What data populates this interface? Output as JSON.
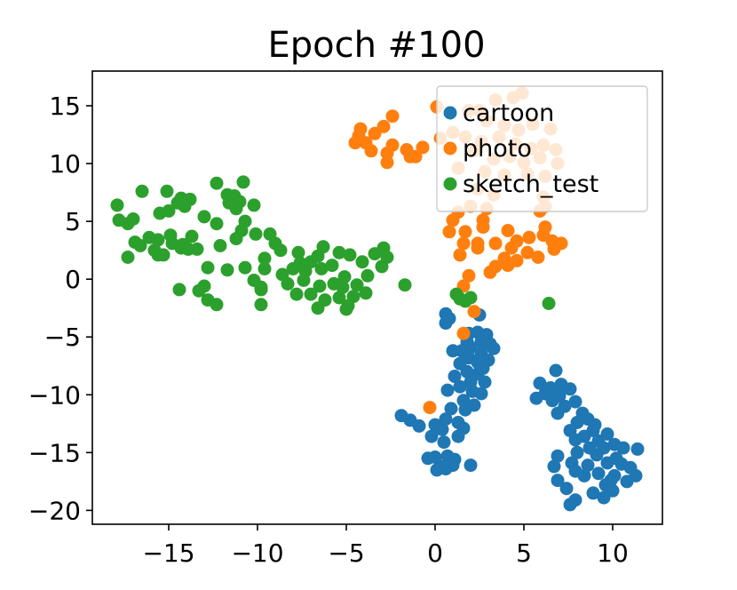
{
  "chart_data": {
    "type": "scatter",
    "title": "Epoch #100",
    "xlabel": "",
    "ylabel": "",
    "xlim": [
      -19.3,
      12.8
    ],
    "ylim": [
      -21.2,
      18.0
    ],
    "xticks": [
      -15,
      -10,
      -5,
      0,
      5,
      10
    ],
    "yticks": [
      15,
      10,
      5,
      0,
      -5,
      -10,
      -15,
      -20
    ],
    "xtick_labels": [
      "−15",
      "−10",
      "−5",
      "0",
      "5",
      "10"
    ],
    "ytick_labels": [
      "15",
      "10",
      "5",
      "0",
      "−5",
      "−10",
      "−15",
      "−20"
    ],
    "grid": false,
    "legend_position": "top-right",
    "series": [
      {
        "name": "cartoon",
        "color": "#1f77b4",
        "points": [
          [
            0.6,
            -3.0
          ],
          [
            0.8,
            -3.4
          ],
          [
            0.6,
            -3.8
          ],
          [
            2.5,
            -3.1
          ],
          [
            1.9,
            -4.7
          ],
          [
            2.4,
            -4.6
          ],
          [
            2.9,
            -4.8
          ],
          [
            1.8,
            -5.4
          ],
          [
            2.6,
            -5.4
          ],
          [
            3.1,
            -5.6
          ],
          [
            2.0,
            -5.9
          ],
          [
            1.5,
            -6.2
          ],
          [
            2.6,
            -6.4
          ],
          [
            3.3,
            -6.0
          ],
          [
            1.0,
            -6.2
          ],
          [
            1.9,
            -6.8
          ],
          [
            2.4,
            -7.2
          ],
          [
            3.0,
            -7.0
          ],
          [
            1.4,
            -7.3
          ],
          [
            2.7,
            -7.7
          ],
          [
            1.8,
            -8.0
          ],
          [
            2.4,
            -8.2
          ],
          [
            1.1,
            -8.4
          ],
          [
            2.0,
            -8.9
          ],
          [
            2.8,
            -8.9
          ],
          [
            1.4,
            -9.3
          ],
          [
            0.7,
            -9.6
          ],
          [
            2.1,
            -9.7
          ],
          [
            2.6,
            -9.9
          ],
          [
            1.6,
            -10.5
          ],
          [
            2.2,
            -10.9
          ],
          [
            0.9,
            -11.2
          ],
          [
            1.7,
            -11.3
          ],
          [
            -1.9,
            -11.8
          ],
          [
            -1.4,
            -12.2
          ],
          [
            0.6,
            -12.1
          ],
          [
            1.3,
            -12.4
          ],
          [
            0.0,
            -12.6
          ],
          [
            -0.9,
            -12.7
          ],
          [
            0.4,
            -13.0
          ],
          [
            1.6,
            -12.9
          ],
          [
            -0.2,
            -13.6
          ],
          [
            1.3,
            -13.6
          ],
          [
            0.5,
            -14.1
          ],
          [
            0.0,
            -15.4
          ],
          [
            -0.4,
            -15.5
          ],
          [
            0.7,
            -15.3
          ],
          [
            1.1,
            -15.6
          ],
          [
            0.3,
            -16.2
          ],
          [
            1.0,
            -16.1
          ],
          [
            2.0,
            -16.1
          ],
          [
            0.1,
            -16.5
          ],
          [
            0.6,
            -16.4
          ],
          [
            6.8,
            -7.9
          ],
          [
            5.9,
            -9.0
          ],
          [
            6.5,
            -9.4
          ],
          [
            7.1,
            -9.1
          ],
          [
            7.6,
            -9.5
          ],
          [
            6.2,
            -9.9
          ],
          [
            7.0,
            -10.1
          ],
          [
            5.7,
            -10.3
          ],
          [
            6.6,
            -10.5
          ],
          [
            7.9,
            -10.6
          ],
          [
            7.3,
            -11.0
          ],
          [
            8.3,
            -11.6
          ],
          [
            6.9,
            -11.6
          ],
          [
            8.6,
            -12.1
          ],
          [
            8.0,
            -12.4
          ],
          [
            9.0,
            -12.6
          ],
          [
            7.6,
            -13.1
          ],
          [
            8.9,
            -13.1
          ],
          [
            8.4,
            -13.6
          ],
          [
            9.7,
            -13.4
          ],
          [
            7.9,
            -13.9
          ],
          [
            9.2,
            -14.0
          ],
          [
            10.1,
            -14.3
          ],
          [
            8.7,
            -14.6
          ],
          [
            9.5,
            -14.6
          ],
          [
            10.6,
            -14.6
          ],
          [
            11.4,
            -14.7
          ],
          [
            8.0,
            -15.0
          ],
          [
            9.1,
            -15.2
          ],
          [
            10.2,
            -15.5
          ],
          [
            6.9,
            -15.3
          ],
          [
            7.7,
            -15.9
          ],
          [
            9.7,
            -15.9
          ],
          [
            8.6,
            -16.1
          ],
          [
            10.5,
            -16.0
          ],
          [
            6.7,
            -16.2
          ],
          [
            11.0,
            -16.3
          ],
          [
            7.9,
            -16.6
          ],
          [
            9.2,
            -16.8
          ],
          [
            8.4,
            -17.0
          ],
          [
            10.1,
            -17.0
          ],
          [
            11.3,
            -17.0
          ],
          [
            6.9,
            -17.4
          ],
          [
            9.9,
            -17.4
          ],
          [
            10.8,
            -17.5
          ],
          [
            9.6,
            -17.8
          ],
          [
            7.4,
            -18.1
          ],
          [
            10.0,
            -18.3
          ],
          [
            8.9,
            -18.5
          ],
          [
            9.5,
            -18.9
          ],
          [
            7.9,
            -19.1
          ],
          [
            7.6,
            -19.5
          ]
        ]
      },
      {
        "name": "photo",
        "color": "#ff7f0e",
        "points": [
          [
            -4.2,
            13.0
          ],
          [
            -3.4,
            12.6
          ],
          [
            -2.4,
            14.1
          ],
          [
            -2.9,
            13.2
          ],
          [
            -4.3,
            12.4
          ],
          [
            -3.9,
            11.8
          ],
          [
            -4.5,
            11.8
          ],
          [
            -3.6,
            11.1
          ],
          [
            -2.4,
            11.6
          ],
          [
            -1.6,
            11.2
          ],
          [
            -1.1,
            10.6
          ],
          [
            -0.7,
            11.4
          ],
          [
            -2.7,
            10.9
          ],
          [
            -2.7,
            10.1
          ],
          [
            -1.4,
            10.6
          ],
          [
            0.1,
            14.9
          ],
          [
            1.9,
            14.6
          ],
          [
            2.5,
            14.6
          ],
          [
            3.4,
            15.5
          ],
          [
            4.4,
            15.7
          ],
          [
            4.9,
            16.1
          ],
          [
            2.9,
            13.7
          ],
          [
            3.9,
            13.3
          ],
          [
            4.7,
            12.9
          ],
          [
            5.5,
            13.4
          ],
          [
            6.5,
            13.0
          ],
          [
            0.3,
            12.2
          ],
          [
            1.0,
            12.7
          ],
          [
            1.7,
            12.3
          ],
          [
            2.6,
            11.9
          ],
          [
            3.6,
            12.3
          ],
          [
            4.5,
            11.7
          ],
          [
            5.4,
            11.3
          ],
          [
            6.1,
            11.6
          ],
          [
            6.8,
            11.2
          ],
          [
            2.2,
            11.1
          ],
          [
            3.3,
            10.4
          ],
          [
            4.2,
            10.6
          ],
          [
            5.0,
            10.1
          ],
          [
            5.9,
            10.5
          ],
          [
            6.9,
            10.0
          ],
          [
            1.3,
            9.6
          ],
          [
            2.8,
            9.3
          ],
          [
            3.9,
            9.0
          ],
          [
            5.2,
            9.1
          ],
          [
            6.2,
            8.9
          ],
          [
            2.4,
            7.8
          ],
          [
            3.3,
            7.3
          ],
          [
            6.1,
            7.1
          ],
          [
            1.3,
            5.8
          ],
          [
            2.0,
            6.3
          ],
          [
            2.9,
            6.1
          ],
          [
            5.9,
            5.9
          ],
          [
            6.2,
            6.3
          ],
          [
            1.0,
            5.1
          ],
          [
            2.7,
            5.1
          ],
          [
            0.8,
            4.1
          ],
          [
            1.7,
            4.1
          ],
          [
            2.7,
            4.5
          ],
          [
            4.1,
            4.2
          ],
          [
            6.2,
            4.5
          ],
          [
            1.6,
            3.1
          ],
          [
            2.4,
            3.1
          ],
          [
            3.4,
            3.1
          ],
          [
            4.6,
            3.3
          ],
          [
            5.3,
            3.6
          ],
          [
            6.1,
            3.8
          ],
          [
            6.6,
            3.3
          ],
          [
            7.1,
            3.1
          ],
          [
            1.4,
            2.1
          ],
          [
            2.4,
            2.7
          ],
          [
            4.3,
            2.7
          ],
          [
            5.2,
            2.3
          ],
          [
            6.7,
            2.6
          ],
          [
            3.9,
            1.8
          ],
          [
            4.6,
            1.6
          ],
          [
            5.8,
            1.9
          ],
          [
            3.4,
            1.1
          ],
          [
            4.1,
            1.2
          ],
          [
            3.1,
            0.6
          ],
          [
            1.9,
            0.3
          ],
          [
            1.6,
            -0.6
          ],
          [
            2.2,
            -2.8
          ],
          [
            1.6,
            -4.7
          ],
          [
            -0.3,
            -11.1
          ]
        ]
      },
      {
        "name": "sketch_test",
        "color": "#2ca02c",
        "points": [
          [
            -17.9,
            6.4
          ],
          [
            -17.8,
            5.1
          ],
          [
            -17.3,
            4.8
          ],
          [
            -17.0,
            5.2
          ],
          [
            -16.5,
            7.6
          ],
          [
            -15.1,
            7.6
          ],
          [
            -15.5,
            5.7
          ],
          [
            -15.0,
            5.9
          ],
          [
            -14.5,
            6.6
          ],
          [
            -14.3,
            7.0
          ],
          [
            -13.8,
            6.9
          ],
          [
            -14.1,
            6.3
          ],
          [
            -12.3,
            8.3
          ],
          [
            -11.7,
            7.3
          ],
          [
            -11.3,
            7.2
          ],
          [
            -11.0,
            6.7
          ],
          [
            -11.2,
            6.1
          ],
          [
            -10.8,
            8.4
          ],
          [
            -11.6,
            6.6
          ],
          [
            -13.0,
            5.4
          ],
          [
            -12.3,
            4.8
          ],
          [
            -10.7,
            5.0
          ],
          [
            -10.2,
            6.4
          ],
          [
            -10.9,
            4.2
          ],
          [
            -16.9,
            3.2
          ],
          [
            -16.1,
            3.6
          ],
          [
            -15.6,
            3.4
          ],
          [
            -14.9,
            3.8
          ],
          [
            -14.2,
            3.0
          ],
          [
            -13.7,
            3.7
          ],
          [
            -16.6,
            2.9
          ],
          [
            -15.8,
            2.5
          ],
          [
            -15.3,
            2.1
          ],
          [
            -14.8,
            3.1
          ],
          [
            -14.3,
            2.7
          ],
          [
            -13.9,
            2.6
          ],
          [
            -17.3,
            1.9
          ],
          [
            -15.6,
            2.1
          ],
          [
            -13.4,
            2.6
          ],
          [
            -12.1,
            2.9
          ],
          [
            -11.2,
            3.5
          ],
          [
            -10.1,
            3.9
          ],
          [
            -9.3,
            3.9
          ],
          [
            -9.0,
            3.1
          ],
          [
            -8.7,
            2.5
          ],
          [
            -9.6,
            1.8
          ],
          [
            -7.7,
            2.3
          ],
          [
            -7.6,
            1.4
          ],
          [
            -7.0,
            1.5
          ],
          [
            -6.6,
            2.0
          ],
          [
            -6.3,
            2.8
          ],
          [
            -5.4,
            2.3
          ],
          [
            -4.8,
            2.1
          ],
          [
            -4.1,
            1.5
          ],
          [
            -3.4,
            2.2
          ],
          [
            -2.9,
            2.7
          ],
          [
            -2.7,
            1.9
          ],
          [
            -3.0,
            1.1
          ],
          [
            -3.8,
            0.3
          ],
          [
            -4.4,
            -0.5
          ],
          [
            -5.1,
            0.2
          ],
          [
            -5.8,
            1.2
          ],
          [
            -6.4,
            0.9
          ],
          [
            -7.3,
            0.7
          ],
          [
            -8.0,
            0.9
          ],
          [
            -8.6,
            0.4
          ],
          [
            -9.6,
            0.9
          ],
          [
            -10.7,
            1.0
          ],
          [
            -11.7,
            0.8
          ],
          [
            -12.8,
            1.0
          ],
          [
            -9.8,
            -0.7
          ],
          [
            -8.3,
            -0.4
          ],
          [
            -7.4,
            -0.1
          ],
          [
            -6.5,
            -0.6
          ],
          [
            -5.7,
            -0.4
          ],
          [
            -5.2,
            -0.7
          ],
          [
            -4.6,
            -1.5
          ],
          [
            -3.9,
            -1.2
          ],
          [
            -7.8,
            -1.3
          ],
          [
            -7.0,
            -1.3
          ],
          [
            -6.2,
            -1.8
          ],
          [
            -5.4,
            -1.6
          ],
          [
            -4.9,
            -2.3
          ],
          [
            -6.6,
            -2.5
          ],
          [
            -5.0,
            -2.6
          ],
          [
            -9.8,
            -2.2
          ],
          [
            -12.3,
            -2.2
          ],
          [
            -12.8,
            -1.8
          ],
          [
            -13.3,
            -1.0
          ],
          [
            -14.4,
            -0.9
          ],
          [
            -13.0,
            -0.6
          ],
          [
            -10.2,
            -0.1
          ],
          [
            -9.8,
            -0.9
          ],
          [
            -1.7,
            -0.5
          ],
          [
            1.2,
            -1.3
          ],
          [
            1.4,
            -1.7
          ],
          [
            1.7,
            -1.9
          ],
          [
            2.0,
            -1.6
          ],
          [
            6.4,
            -2.1
          ]
        ]
      }
    ]
  }
}
